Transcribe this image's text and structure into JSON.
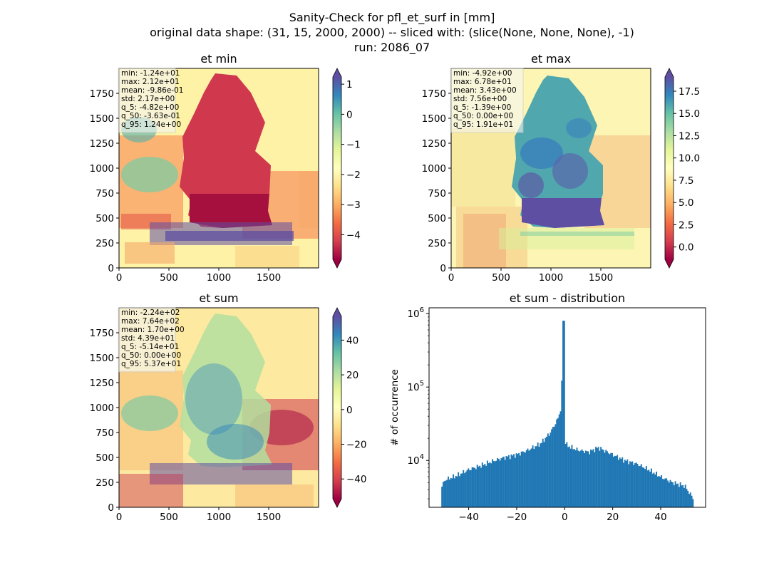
{
  "figure": {
    "title_lines": [
      "Sanity-Check for pfl_et_surf in [mm]",
      "original data shape: (31, 15, 2000, 2000) -- sliced with: (slice(None, None, None), -1)",
      "run: 2086_07"
    ]
  },
  "chart_data": [
    {
      "type": "heatmap",
      "title": "et min",
      "colormap": "Spectral",
      "x_ticks": [
        "0",
        "500",
        "1000",
        "1500"
      ],
      "y_ticks": [
        "0",
        "250",
        "500",
        "750",
        "1000",
        "1250",
        "1500",
        "1750"
      ],
      "xlim": [
        0,
        2000
      ],
      "ylim": [
        0,
        2000
      ],
      "colorbar": {
        "range": [
          -4.82,
          1.24
        ],
        "ticks": [
          1,
          0,
          -1,
          -2,
          -3,
          -4
        ],
        "tick_labels": [
          "1",
          "0",
          "−1",
          "−2",
          "−3",
          "−4"
        ],
        "extend": "both"
      },
      "stats": [
        "min: -1.24e+01",
        "max: 2.12e+01",
        "mean: -9.86e-01",
        "std: 2.17e+00",
        "q_5: -4.82e+00",
        "q_50: -3.63e-01",
        "q_95: 1.24e+00"
      ]
    },
    {
      "type": "heatmap",
      "title": "et max",
      "colormap": "Spectral",
      "x_ticks": [
        "0",
        "500",
        "1000",
        "1500"
      ],
      "y_ticks": [
        "0",
        "250",
        "500",
        "750",
        "1000",
        "1250",
        "1500",
        "1750"
      ],
      "xlim": [
        0,
        2000
      ],
      "ylim": [
        0,
        2000
      ],
      "colorbar": {
        "range": [
          -1.39,
          19.1
        ],
        "ticks": [
          17.5,
          15.0,
          12.5,
          10.0,
          7.5,
          5.0,
          2.5,
          0.0
        ],
        "tick_labels": [
          "17.5",
          "15.0",
          "12.5",
          "10.0",
          "7.5",
          "5.0",
          "2.5",
          "0.0"
        ],
        "extend": "both"
      },
      "stats": [
        "min: -4.92e+00",
        "max: 6.78e+01",
        "mean: 3.43e+00",
        "std: 7.56e+00",
        "q_5: -1.39e+00",
        "q_50: 0.00e+00",
        "q_95: 1.91e+01"
      ]
    },
    {
      "type": "heatmap",
      "title": "et sum",
      "colormap": "Spectral",
      "x_ticks": [
        "0",
        "500",
        "1000",
        "1500"
      ],
      "y_ticks": [
        "0",
        "250",
        "500",
        "750",
        "1000",
        "1250",
        "1500",
        "1750"
      ],
      "xlim": [
        0,
        2000
      ],
      "ylim": [
        0,
        2000
      ],
      "colorbar": {
        "range": [
          -51.4,
          53.7
        ],
        "ticks": [
          40,
          20,
          0,
          -20,
          -40
        ],
        "tick_labels": [
          "40",
          "20",
          "0",
          "−20",
          "−40"
        ],
        "extend": "both"
      },
      "stats": [
        "min: -2.24e+02",
        "max: 7.64e+02",
        "mean: 1.70e+00",
        "std: 4.39e+01",
        "q_5: -5.14e+01",
        "q_50: 0.00e+00",
        "q_95: 5.37e+01"
      ]
    },
    {
      "type": "bar",
      "title": "et sum - distribution",
      "xlabel": "",
      "ylabel": "# of occurrence",
      "color": "#1f77b4",
      "yscale": "log",
      "xlim": [
        -56.5,
        58.7
      ],
      "ylim": [
        2300,
        1200000
      ],
      "x_ticks": [
        -40,
        -20,
        0,
        20,
        40
      ],
      "x_tick_labels": [
        "−40",
        "−20",
        "0",
        "20",
        "40"
      ],
      "y_ticks": [
        10000,
        100000,
        1000000
      ],
      "y_tick_labels": [
        "10^4",
        "10^5",
        "10^6"
      ],
      "bins_range": [
        -51.4,
        53.7
      ],
      "bin_count": 200,
      "profile_points": [
        {
          "x": -51.4,
          "y": 4200
        },
        {
          "x": -50,
          "y": 5400
        },
        {
          "x": -45,
          "y": 6200
        },
        {
          "x": -40,
          "y": 7500
        },
        {
          "x": -35,
          "y": 8500
        },
        {
          "x": -30,
          "y": 9800
        },
        {
          "x": -25,
          "y": 11000
        },
        {
          "x": -20,
          "y": 12000
        },
        {
          "x": -15,
          "y": 14000
        },
        {
          "x": -10,
          "y": 17000
        },
        {
          "x": -6,
          "y": 24000
        },
        {
          "x": -3,
          "y": 36000
        },
        {
          "x": -1.5,
          "y": 52000
        },
        {
          "x": -0.5,
          "y": 800000
        },
        {
          "x": 0.3,
          "y": 18000
        },
        {
          "x": 1,
          "y": 16000
        },
        {
          "x": 5,
          "y": 14000
        },
        {
          "x": 10,
          "y": 13000
        },
        {
          "x": 14,
          "y": 15000
        },
        {
          "x": 20,
          "y": 12000
        },
        {
          "x": 25,
          "y": 10000
        },
        {
          "x": 30,
          "y": 9000
        },
        {
          "x": 35,
          "y": 7500
        },
        {
          "x": 40,
          "y": 6000
        },
        {
          "x": 45,
          "y": 5000
        },
        {
          "x": 50,
          "y": 4500
        },
        {
          "x": 53.7,
          "y": 3000
        }
      ]
    }
  ]
}
